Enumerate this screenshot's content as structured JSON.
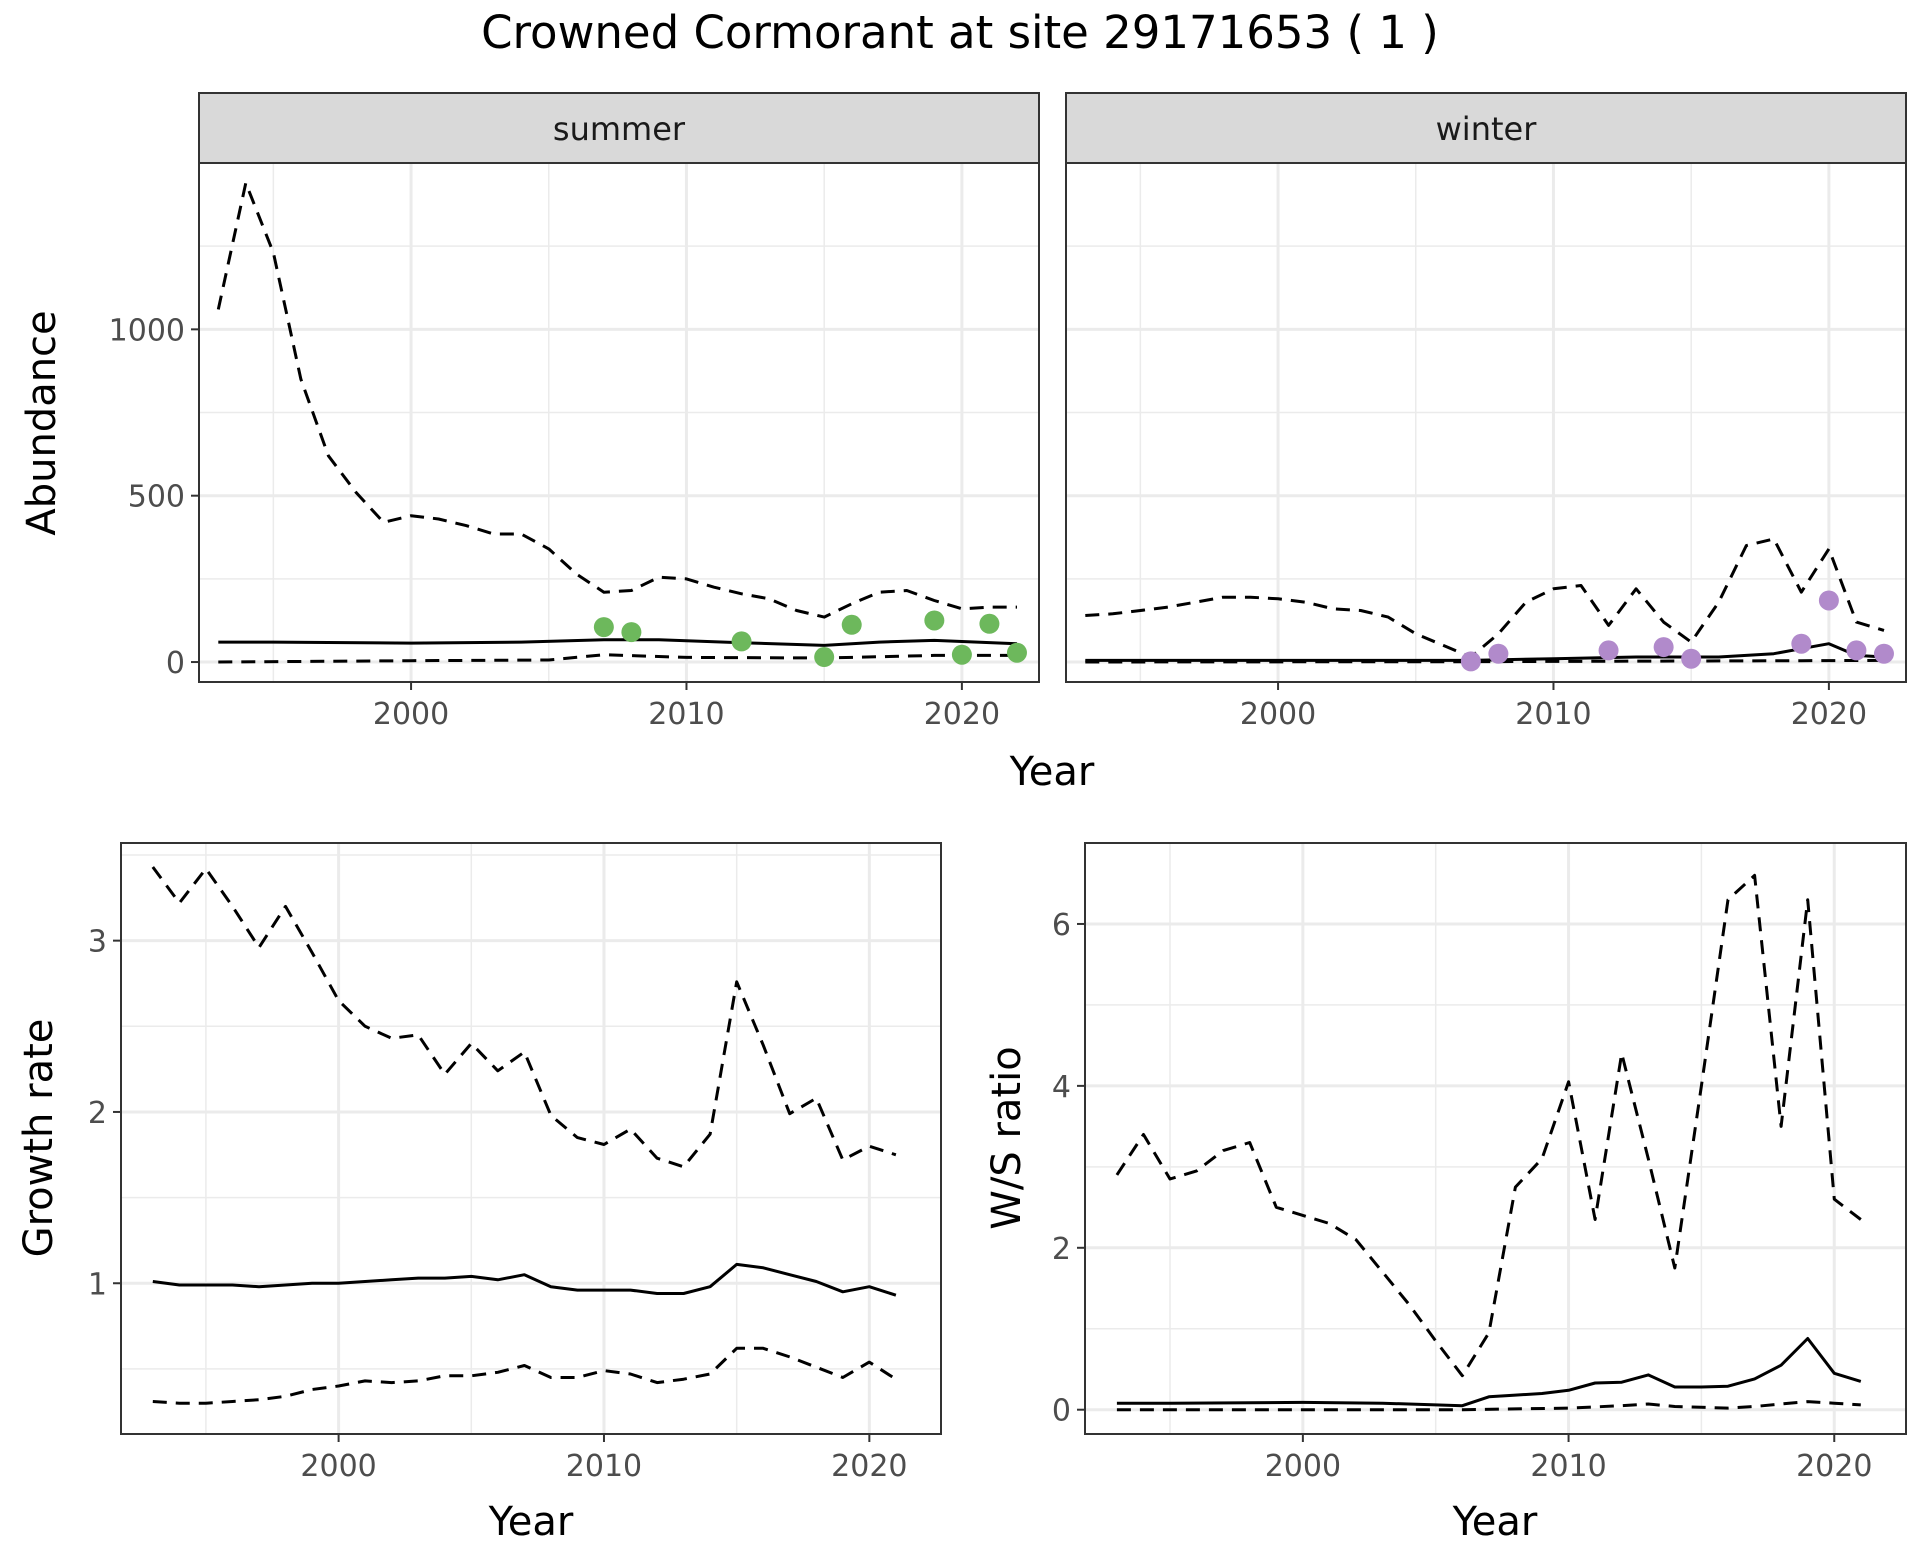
{
  "title": "Crowned Cormorant at site 29171653 ( 1 )",
  "colors": {
    "summer_points": "#6DB85C",
    "winter_points": "#B18ACB",
    "line": "#000000",
    "strip": "#D9D9D9",
    "grid": "#EBEBEB"
  },
  "chart_data": [
    {
      "type": "line",
      "panel": "summer",
      "xlabel": "Year",
      "ylabel": "Abundance",
      "xlim": [
        1992.3,
        2022.8
      ],
      "ylim": [
        -60,
        1500
      ],
      "xticks": [
        2000,
        2010,
        2020
      ],
      "yticks": [
        0,
        500,
        1000
      ],
      "grid": true,
      "series": [
        {
          "style": "solid",
          "x": [
            1993,
            1995,
            2000,
            2004,
            2007,
            2009,
            2012,
            2015,
            2017,
            2019,
            2022
          ],
          "values": [
            60,
            60,
            57,
            60,
            67,
            67,
            58,
            50,
            60,
            65,
            55
          ]
        },
        {
          "style": "dashed",
          "x": [
            1993,
            1994,
            1995,
            1996,
            1997,
            1998,
            1999,
            2000,
            2001,
            2002,
            2003,
            2004,
            2005,
            2006,
            2007,
            2008,
            2009,
            2010,
            2011,
            2012,
            2013,
            2014,
            2015,
            2016,
            2017,
            2018,
            2019,
            2020,
            2021,
            2022
          ],
          "values": [
            1060,
            1440,
            1230,
            850,
            620,
            510,
            420,
            440,
            430,
            410,
            385,
            385,
            340,
            265,
            210,
            215,
            255,
            250,
            225,
            205,
            190,
            155,
            135,
            175,
            210,
            215,
            185,
            160,
            165,
            165
          ]
        },
        {
          "style": "dashed",
          "x": [
            1993,
            2000,
            2005,
            2007,
            2010,
            2015,
            2019,
            2022
          ],
          "values": [
            0,
            4,
            6,
            22,
            14,
            12,
            20,
            20
          ]
        }
      ],
      "points": {
        "x": [
          2007,
          2008,
          2012,
          2015,
          2016,
          2019,
          2020,
          2021,
          2022
        ],
        "values": [
          105,
          90,
          62,
          15,
          112,
          125,
          22,
          115,
          28
        ]
      }
    },
    {
      "type": "line",
      "panel": "winter",
      "xlabel": "Year",
      "ylabel": "Abundance",
      "xlim": [
        1992.3,
        2022.8
      ],
      "ylim": [
        -60,
        1500
      ],
      "xticks": [
        2000,
        2010,
        2020
      ],
      "yticks": [
        0,
        500,
        1000
      ],
      "grid": true,
      "series": [
        {
          "style": "solid",
          "x": [
            1993,
            2000,
            2005,
            2007,
            2010,
            2013,
            2016,
            2018,
            2019,
            2020,
            2021,
            2022
          ],
          "values": [
            5,
            5,
            5,
            5,
            10,
            15,
            15,
            25,
            40,
            55,
            20,
            15
          ]
        },
        {
          "style": "dashed",
          "x": [
            1993,
            1994,
            1995,
            1996,
            1997,
            1998,
            1999,
            2000,
            2001,
            2002,
            2003,
            2004,
            2005,
            2006,
            2007,
            2008,
            2009,
            2010,
            2011,
            2012,
            2013,
            2014,
            2015,
            2016,
            2017,
            2018,
            2019,
            2020,
            2021,
            2022
          ],
          "values": [
            140,
            145,
            155,
            165,
            180,
            195,
            195,
            190,
            180,
            160,
            155,
            135,
            85,
            50,
            15,
            85,
            180,
            220,
            230,
            110,
            220,
            120,
            60,
            180,
            350,
            370,
            210,
            340,
            120,
            95
          ]
        },
        {
          "style": "dashed",
          "x": [
            1993,
            2005,
            2007,
            2010,
            2015,
            2019,
            2022
          ],
          "values": [
            0,
            1,
            1,
            2,
            3,
            4,
            5
          ]
        }
      ],
      "points": {
        "x": [
          2007,
          2008,
          2012,
          2014,
          2015,
          2019,
          2020,
          2021,
          2022
        ],
        "values": [
          2,
          25,
          35,
          45,
          10,
          55,
          185,
          35,
          25
        ]
      }
    },
    {
      "type": "line",
      "xlabel": "Year",
      "ylabel": "Growth rate",
      "xlim": [
        1991.8,
        2022.7
      ],
      "ylim": [
        0.12,
        3.57
      ],
      "xticks": [
        2000,
        2010,
        2020
      ],
      "yticks": [
        1,
        2,
        3
      ],
      "grid": true,
      "series": [
        {
          "style": "solid",
          "x": [
            1993,
            1994,
            1995,
            1996,
            1997,
            1998,
            1999,
            2000,
            2001,
            2002,
            2003,
            2004,
            2005,
            2006,
            2007,
            2008,
            2009,
            2010,
            2011,
            2012,
            2013,
            2014,
            2015,
            2016,
            2017,
            2018,
            2019,
            2020,
            2021
          ],
          "values": [
            1.01,
            0.99,
            0.99,
            0.99,
            0.98,
            0.99,
            1.0,
            1.0,
            1.01,
            1.02,
            1.03,
            1.03,
            1.04,
            1.02,
            1.05,
            0.98,
            0.96,
            0.96,
            0.96,
            0.94,
            0.94,
            0.98,
            1.11,
            1.09,
            1.05,
            1.01,
            0.95,
            0.98,
            0.93
          ]
        },
        {
          "style": "dashed",
          "x": [
            1993,
            1994,
            1995,
            1996,
            1997,
            1998,
            1999,
            2000,
            2001,
            2002,
            2003,
            2004,
            2005,
            2006,
            2007,
            2008,
            2009,
            2010,
            2011,
            2012,
            2013,
            2014,
            2015,
            2016,
            2017,
            2018,
            2019,
            2020,
            2021
          ],
          "values": [
            3.43,
            3.22,
            3.42,
            3.2,
            2.96,
            3.2,
            2.93,
            2.65,
            2.5,
            2.43,
            2.45,
            2.22,
            2.4,
            2.24,
            2.35,
            1.98,
            1.85,
            1.81,
            1.9,
            1.73,
            1.68,
            1.87,
            2.76,
            2.39,
            1.99,
            2.08,
            1.72,
            1.8,
            1.75
          ]
        },
        {
          "style": "dashed",
          "x": [
            1993,
            1994,
            1995,
            1996,
            1997,
            1998,
            1999,
            2000,
            2001,
            2002,
            2003,
            2004,
            2005,
            2006,
            2007,
            2008,
            2009,
            2010,
            2011,
            2012,
            2013,
            2014,
            2015,
            2016,
            2017,
            2018,
            2019,
            2020,
            2021
          ],
          "values": [
            0.31,
            0.3,
            0.3,
            0.31,
            0.32,
            0.34,
            0.38,
            0.4,
            0.43,
            0.42,
            0.43,
            0.46,
            0.46,
            0.48,
            0.52,
            0.45,
            0.45,
            0.49,
            0.47,
            0.42,
            0.44,
            0.47,
            0.62,
            0.62,
            0.57,
            0.51,
            0.45,
            0.54,
            0.44
          ]
        }
      ]
    },
    {
      "type": "line",
      "xlabel": "Year",
      "ylabel": "W/S ratio",
      "xlim": [
        1991.8,
        2022.7
      ],
      "ylim": [
        -0.3,
        7.0
      ],
      "xticks": [
        2000,
        2010,
        2020
      ],
      "yticks": [
        0,
        2,
        4,
        6
      ],
      "grid": true,
      "series": [
        {
          "style": "solid",
          "x": [
            1993,
            1995,
            2000,
            2003,
            2005,
            2006,
            2007,
            2008,
            2009,
            2010,
            2011,
            2012,
            2013,
            2014,
            2015,
            2016,
            2017,
            2018,
            2019,
            2020,
            2021
          ],
          "values": [
            0.08,
            0.08,
            0.09,
            0.08,
            0.06,
            0.05,
            0.16,
            0.18,
            0.2,
            0.24,
            0.33,
            0.34,
            0.43,
            0.28,
            0.28,
            0.29,
            0.38,
            0.55,
            0.88,
            0.45,
            0.35
          ]
        },
        {
          "style": "dashed",
          "x": [
            1993,
            1994,
            1995,
            1996,
            1997,
            1998,
            1999,
            2000,
            2001,
            2002,
            2003,
            2004,
            2005,
            2006,
            2007,
            2008,
            2009,
            2010,
            2011,
            2012,
            2013,
            2014,
            2015,
            2016,
            2017,
            2018,
            2019,
            2020,
            2021
          ],
          "values": [
            2.9,
            3.4,
            2.85,
            2.95,
            3.2,
            3.3,
            2.5,
            2.4,
            2.3,
            2.1,
            1.7,
            1.3,
            0.85,
            0.42,
            0.95,
            2.75,
            3.1,
            4.05,
            2.35,
            4.4,
            3.1,
            1.75,
            4.0,
            6.3,
            6.6,
            3.5,
            6.3,
            2.6,
            2.35
          ]
        },
        {
          "style": "dashed",
          "x": [
            1993,
            2000,
            2006,
            2010,
            2012,
            2013,
            2014,
            2016,
            2017,
            2018,
            2019,
            2020,
            2021
          ],
          "values": [
            0.0,
            0.0,
            0.0,
            0.02,
            0.05,
            0.07,
            0.04,
            0.02,
            0.04,
            0.07,
            0.1,
            0.08,
            0.06
          ]
        }
      ]
    }
  ]
}
